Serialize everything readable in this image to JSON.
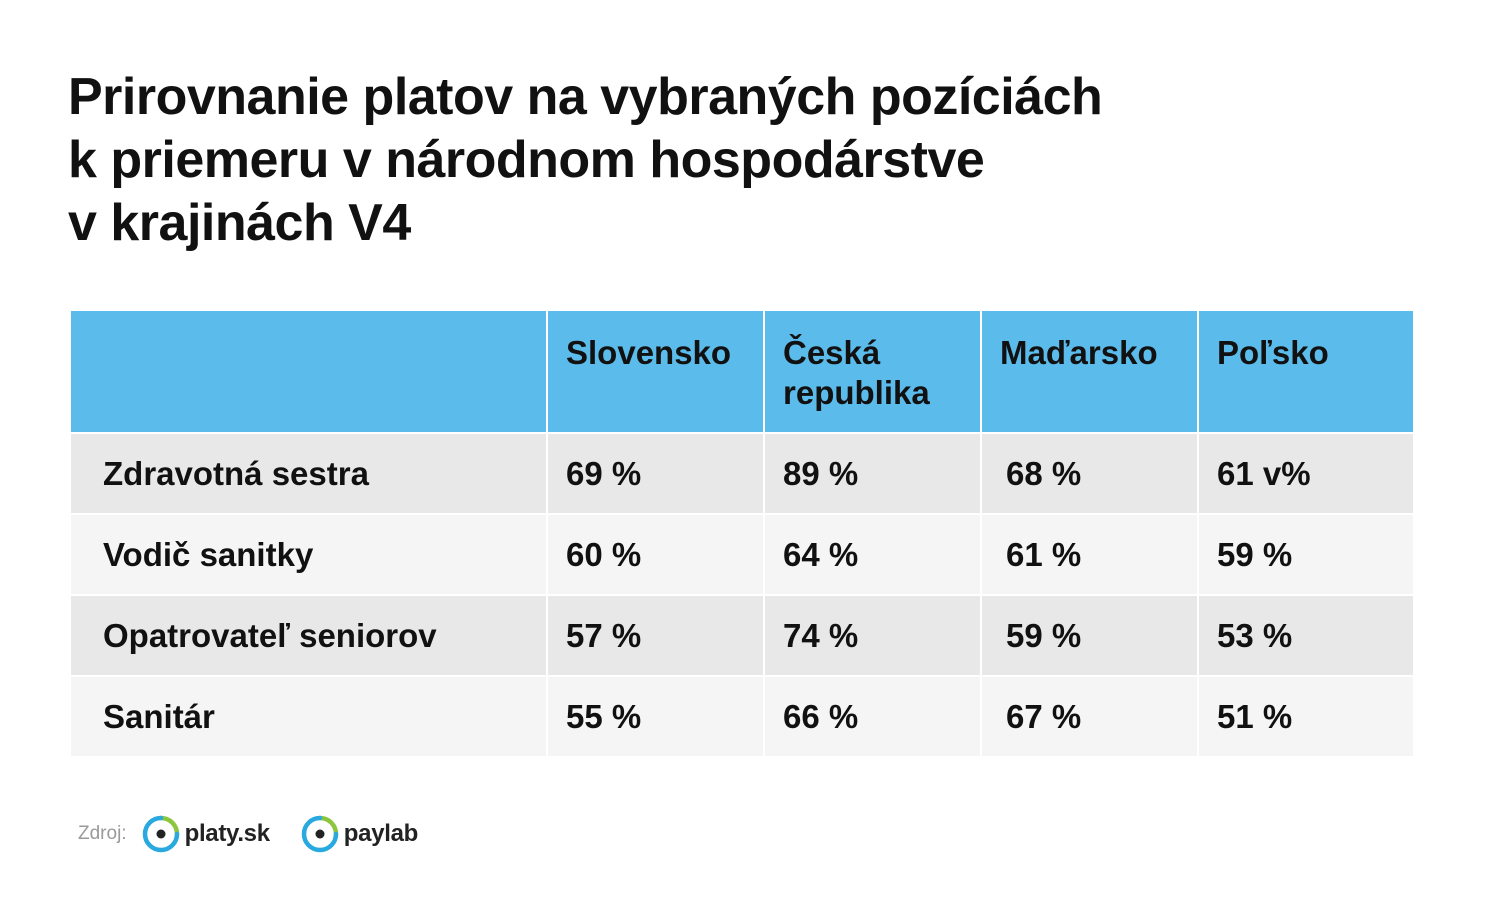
{
  "title_lines": [
    "Prirovnanie platov na vybraných pozíciách",
    "k priemeru v národnom hospodárstve",
    "v krajinách V4"
  ],
  "chart_data": {
    "type": "table",
    "title": "Prirovnanie platov na vybraných pozíciách k priemeru v národnom hospodárstve v krajinách V4",
    "columns": [
      "",
      "Slovensko",
      "Česká republika",
      "Maďarsko",
      "Poľsko"
    ],
    "rows": [
      {
        "label": "Zdravotná sestra",
        "values": [
          "69 %",
          "89 %",
          "68 %",
          "61 v%"
        ]
      },
      {
        "label": "Vodič sanitky",
        "values": [
          "60 %",
          "64 %",
          "61 %",
          "59 %"
        ]
      },
      {
        "label": "Opatrovateľ seniorov",
        "values": [
          "57 %",
          "74 %",
          "59 %",
          "53 %"
        ]
      },
      {
        "label": "Sanitár",
        "values": [
          "55 %",
          "66 %",
          "67 %",
          "51 %"
        ]
      }
    ]
  },
  "source": {
    "label": "Zdroj:",
    "logos": [
      {
        "name": "platy.sk",
        "icon": "platy-logo-icon"
      },
      {
        "name": "paylab",
        "icon": "paylab-logo-icon"
      }
    ]
  },
  "colors": {
    "header_bg": "#5bbbea",
    "row_odd": "#e8e8e8",
    "row_even": "#f5f5f5",
    "logo_green": "#8cc63f",
    "logo_blue": "#29a9e0"
  }
}
